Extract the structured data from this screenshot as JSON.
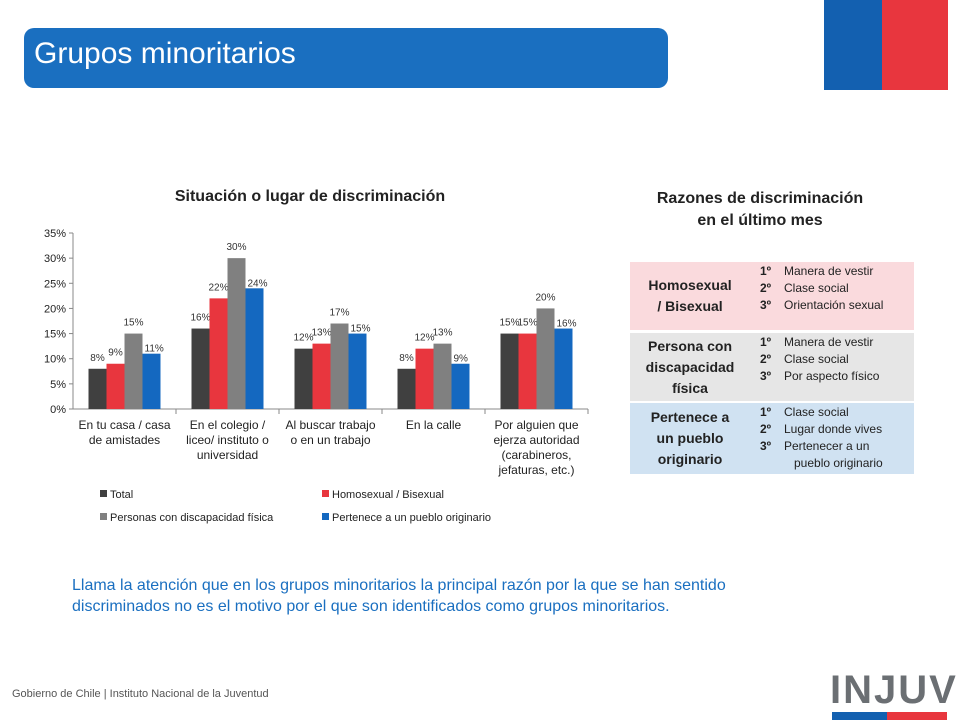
{
  "slide": {
    "title": "Grupos minoritarios",
    "chart_title": "Situación o lugar de discriminación",
    "reasons_title_line1": "Razones de discriminación",
    "reasons_title_line2": "en el último mes",
    "note": "Llama la atención que en los grupos minoritarios la principal razón por la que se han sentido discriminados no es el motivo por el que son identificados como grupos minoritarios.",
    "footer": "Gobierno de Chile | Instituto Nacional de la Juventud",
    "logo": "INJUV"
  },
  "chart_data": {
    "type": "bar",
    "title": "Situación o lugar de discriminación",
    "categories": [
      "En tu casa / casa de amistades",
      "En el colegio / liceo/ instituto o universidad",
      "Al buscar trabajo o en un trabajo",
      "En la calle",
      "Por alguien que ejerza autoridad (carabineros, jefaturas, etc.)"
    ],
    "series": [
      {
        "name": "Total",
        "color": "#404040",
        "values": [
          8,
          16,
          12,
          8,
          15
        ]
      },
      {
        "name": "Homosexual / Bisexual",
        "color": "#e8363e",
        "values": [
          9,
          22,
          13,
          12,
          15
        ]
      },
      {
        "name": "Personas con discapacidad física",
        "color": "#808080",
        "values": [
          15,
          30,
          17,
          13,
          20
        ]
      },
      {
        "name": "Pertenece a un pueblo originario",
        "color": "#1468c0",
        "values": [
          11,
          24,
          15,
          9,
          16
        ]
      }
    ],
    "ylim": [
      0,
      35
    ],
    "yticks": [
      "0%",
      "5%",
      "10%",
      "15%",
      "20%",
      "25%",
      "30%",
      "35%"
    ],
    "unit": "%",
    "legend_position": "bottom"
  },
  "reasons": [
    {
      "group_lines": [
        "Homosexual",
        "/ Bisexual"
      ],
      "bg": "#fadadd",
      "ranks": [
        "1º",
        "2º",
        "3º"
      ],
      "reasons": [
        "Manera de vestir",
        "Clase social",
        "Orientación sexual"
      ]
    },
    {
      "group_lines": [
        "Persona con",
        "discapacidad",
        "física"
      ],
      "bg": "#e6e6e6",
      "ranks": [
        "1º",
        "2º",
        "3º"
      ],
      "reasons": [
        "Manera de vestir",
        "Clase social",
        "Por aspecto físico"
      ]
    },
    {
      "group_lines": [
        "Pertenece a",
        "un pueblo",
        "originario"
      ],
      "bg": "#d0e2f2",
      "ranks": [
        "1º",
        "2º",
        "3º"
      ],
      "reasons": [
        "Clase social",
        "Lugar donde vives",
        "Pertenecer a un",
        "pueblo originario"
      ]
    }
  ]
}
